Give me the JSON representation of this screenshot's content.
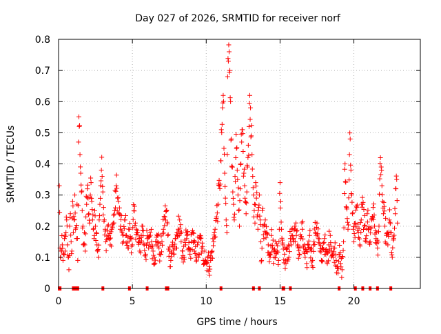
{
  "chart_data": {
    "type": "scatter",
    "title": "Day 027 of 2026, SRMTID for receiver norf",
    "xlabel": "GPS time / hours",
    "ylabel": "SRMTID / TECUs",
    "xlim": [
      0,
      24.5
    ],
    "ylim": [
      0,
      0.8
    ],
    "xticks": [
      0,
      5,
      10,
      15,
      20
    ],
    "yticks": [
      0,
      0.1,
      0.2,
      0.3,
      0.4,
      0.5,
      0.6,
      0.7,
      0.8
    ],
    "grid": true,
    "marker": "+",
    "color": "#ff0000",
    "series": [
      {
        "name": "SRMTID",
        "points": [
          [
            0.05,
            0.33
          ],
          [
            0.1,
            0.13
          ],
          [
            0.15,
            0.1
          ],
          [
            0.2,
            0.12
          ],
          [
            0.25,
            0.14
          ],
          [
            0.3,
            0.09
          ],
          [
            0.35,
            0.11
          ],
          [
            0.4,
            0.16
          ],
          [
            0.45,
            0.12
          ],
          [
            0.5,
            0.18
          ],
          [
            0.55,
            0.22
          ],
          [
            0.6,
            0.14
          ],
          [
            0.65,
            0.1
          ],
          [
            0.7,
            0.06
          ],
          [
            0.75,
            0.2
          ],
          [
            0.8,
            0.24
          ],
          [
            0.85,
            0.15
          ],
          [
            0.9,
            0.12
          ],
          [
            0.95,
            0.28
          ],
          [
            1.0,
            0.18
          ],
          [
            1.05,
            0.22
          ],
          [
            1.1,
            0.3
          ],
          [
            1.15,
            0.19
          ],
          [
            1.2,
            0.16
          ],
          [
            1.25,
            0.27
          ],
          [
            1.3,
            0.09
          ],
          [
            1.35,
            0.47
          ],
          [
            1.4,
            0.52
          ],
          [
            1.45,
            0.43
          ],
          [
            1.5,
            0.37
          ],
          [
            1.55,
            0.31
          ],
          [
            1.6,
            0.25
          ],
          [
            1.65,
            0.2
          ],
          [
            1.7,
            0.14
          ],
          [
            1.75,
            0.18
          ],
          [
            1.8,
            0.12
          ],
          [
            1.85,
            0.23
          ],
          [
            1.9,
            0.27
          ],
          [
            1.95,
            0.32
          ],
          [
            2.0,
            0.29
          ],
          [
            2.05,
            0.24
          ],
          [
            2.1,
            0.21
          ],
          [
            2.15,
            0.3
          ],
          [
            2.2,
            0.34
          ],
          [
            2.25,
            0.28
          ],
          [
            2.3,
            0.22
          ],
          [
            2.35,
            0.19
          ],
          [
            2.4,
            0.16
          ],
          [
            2.45,
            0.25
          ],
          [
            2.5,
            0.2
          ],
          [
            2.55,
            0.18
          ],
          [
            2.6,
            0.14
          ],
          [
            2.65,
            0.12
          ],
          [
            2.7,
            0.1
          ],
          [
            2.75,
            0.22
          ],
          [
            2.8,
            0.27
          ],
          [
            2.85,
            0.33
          ],
          [
            2.9,
            0.38
          ],
          [
            2.95,
            0.36
          ],
          [
            3.0,
            0.31
          ],
          [
            3.05,
            0.26
          ],
          [
            3.1,
            0.22
          ],
          [
            3.15,
            0.19
          ],
          [
            3.2,
            0.15
          ],
          [
            3.3,
            0.2
          ],
          [
            3.4,
            0.17
          ],
          [
            3.5,
            0.14
          ],
          [
            3.6,
            0.19
          ],
          [
            3.7,
            0.21
          ],
          [
            3.8,
            0.25
          ],
          [
            3.9,
            0.33
          ],
          [
            4.0,
            0.29
          ],
          [
            4.1,
            0.24
          ],
          [
            4.2,
            0.2
          ],
          [
            4.3,
            0.18
          ],
          [
            4.4,
            0.15
          ],
          [
            4.5,
            0.22
          ],
          [
            4.6,
            0.17
          ],
          [
            4.7,
            0.13
          ],
          [
            4.8,
            0.19
          ],
          [
            4.9,
            0.16
          ],
          [
            5.0,
            0.14
          ],
          [
            5.1,
            0.25
          ],
          [
            5.2,
            0.21
          ],
          [
            5.3,
            0.18
          ],
          [
            5.4,
            0.15
          ],
          [
            5.5,
            0.12
          ],
          [
            5.6,
            0.17
          ],
          [
            5.7,
            0.2
          ],
          [
            5.8,
            0.14
          ],
          [
            5.9,
            0.11
          ],
          [
            6.0,
            0.16
          ],
          [
            6.1,
            0.13
          ],
          [
            6.2,
            0.18
          ],
          [
            6.3,
            0.15
          ],
          [
            6.4,
            0.12
          ],
          [
            6.5,
            0.1
          ],
          [
            6.6,
            0.14
          ],
          [
            6.7,
            0.17
          ],
          [
            6.8,
            0.13
          ],
          [
            6.9,
            0.11
          ],
          [
            7.0,
            0.15
          ],
          [
            7.1,
            0.19
          ],
          [
            7.2,
            0.23
          ],
          [
            7.3,
            0.25
          ],
          [
            7.4,
            0.17
          ],
          [
            7.5,
            0.12
          ],
          [
            7.6,
            0.09
          ],
          [
            7.7,
            0.14
          ],
          [
            7.8,
            0.11
          ],
          [
            7.9,
            0.16
          ],
          [
            8.0,
            0.13
          ],
          [
            8.1,
            0.19
          ],
          [
            8.2,
            0.22
          ],
          [
            8.3,
            0.15
          ],
          [
            8.4,
            0.12
          ],
          [
            8.5,
            0.1
          ],
          [
            8.6,
            0.14
          ],
          [
            8.7,
            0.17
          ],
          [
            8.8,
            0.13
          ],
          [
            8.9,
            0.11
          ],
          [
            9.0,
            0.15
          ],
          [
            9.1,
            0.18
          ],
          [
            9.2,
            0.12
          ],
          [
            9.3,
            0.1
          ],
          [
            9.4,
            0.14
          ],
          [
            9.5,
            0.11
          ],
          [
            9.6,
            0.16
          ],
          [
            9.7,
            0.13
          ],
          [
            9.8,
            0.09
          ],
          [
            9.9,
            0.12
          ],
          [
            10.0,
            0.08
          ],
          [
            10.1,
            0.1
          ],
          [
            10.2,
            0.07
          ],
          [
            10.3,
            0.09
          ],
          [
            10.4,
            0.12
          ],
          [
            10.5,
            0.15
          ],
          [
            10.6,
            0.19
          ],
          [
            10.7,
            0.23
          ],
          [
            10.8,
            0.27
          ],
          [
            10.9,
            0.33
          ],
          [
            11.0,
            0.41
          ],
          [
            11.05,
            0.5
          ],
          [
            11.1,
            0.58
          ],
          [
            11.15,
            0.62
          ],
          [
            11.2,
            0.45
          ],
          [
            11.25,
            0.37
          ],
          [
            11.3,
            0.29
          ],
          [
            11.35,
            0.22
          ],
          [
            11.4,
            0.18
          ],
          [
            11.45,
            0.68
          ],
          [
            11.5,
            0.73
          ],
          [
            11.55,
            0.76
          ],
          [
            11.6,
            0.7
          ],
          [
            11.65,
            0.6
          ],
          [
            11.7,
            0.48
          ],
          [
            11.75,
            0.39
          ],
          [
            11.8,
            0.31
          ],
          [
            11.85,
            0.27
          ],
          [
            11.9,
            0.22
          ],
          [
            11.95,
            0.36
          ],
          [
            12.0,
            0.42
          ],
          [
            12.05,
            0.45
          ],
          [
            12.1,
            0.38
          ],
          [
            12.15,
            0.3
          ],
          [
            12.2,
            0.25
          ],
          [
            12.25,
            0.2
          ],
          [
            12.3,
            0.32
          ],
          [
            12.35,
            0.4
          ],
          [
            12.4,
            0.47
          ],
          [
            12.45,
            0.51
          ],
          [
            12.5,
            0.44
          ],
          [
            12.55,
            0.37
          ],
          [
            12.6,
            0.33
          ],
          [
            12.65,
            0.28
          ],
          [
            12.7,
            0.24
          ],
          [
            12.75,
            0.31
          ],
          [
            12.8,
            0.39
          ],
          [
            12.85,
            0.46
          ],
          [
            12.9,
            0.52
          ],
          [
            12.95,
            0.62
          ],
          [
            13.0,
            0.58
          ],
          [
            13.05,
            0.49
          ],
          [
            13.1,
            0.43
          ],
          [
            13.15,
            0.36
          ],
          [
            13.2,
            0.3
          ],
          [
            13.25,
            0.25
          ],
          [
            13.3,
            0.21
          ],
          [
            13.35,
            0.34
          ],
          [
            13.4,
            0.29
          ],
          [
            13.45,
            0.23
          ],
          [
            13.5,
            0.19
          ],
          [
            13.55,
            0.26
          ],
          [
            13.6,
            0.3
          ],
          [
            13.65,
            0.22
          ],
          [
            13.7,
            0.15
          ],
          [
            13.75,
            0.09
          ],
          [
            13.8,
            0.25
          ],
          [
            13.85,
            0.2
          ],
          [
            13.9,
            0.16
          ],
          [
            14.0,
            0.22
          ],
          [
            14.1,
            0.18
          ],
          [
            14.2,
            0.14
          ],
          [
            14.3,
            0.11
          ],
          [
            14.4,
            0.17
          ],
          [
            14.5,
            0.13
          ],
          [
            14.6,
            0.1
          ],
          [
            14.7,
            0.15
          ],
          [
            14.8,
            0.12
          ],
          [
            14.9,
            0.09
          ],
          [
            15.0,
            0.34
          ],
          [
            15.05,
            0.28
          ],
          [
            15.1,
            0.19
          ],
          [
            15.2,
            0.14
          ],
          [
            15.3,
            0.11
          ],
          [
            15.4,
            0.08
          ],
          [
            15.5,
            0.13
          ],
          [
            15.6,
            0.1
          ],
          [
            15.7,
            0.16
          ],
          [
            15.8,
            0.19
          ],
          [
            15.9,
            0.15
          ],
          [
            16.0,
            0.2
          ],
          [
            16.1,
            0.17
          ],
          [
            16.2,
            0.14
          ],
          [
            16.3,
            0.11
          ],
          [
            16.4,
            0.16
          ],
          [
            16.5,
            0.19
          ],
          [
            16.6,
            0.13
          ],
          [
            16.7,
            0.1
          ],
          [
            16.8,
            0.08
          ],
          [
            16.9,
            0.14
          ],
          [
            17.0,
            0.17
          ],
          [
            17.1,
            0.12
          ],
          [
            17.2,
            0.09
          ],
          [
            17.3,
            0.15
          ],
          [
            17.4,
            0.18
          ],
          [
            17.5,
            0.21
          ],
          [
            17.6,
            0.16
          ],
          [
            17.7,
            0.12
          ],
          [
            17.8,
            0.09
          ],
          [
            17.9,
            0.13
          ],
          [
            18.0,
            0.16
          ],
          [
            18.1,
            0.11
          ],
          [
            18.2,
            0.08
          ],
          [
            18.3,
            0.14
          ],
          [
            18.4,
            0.17
          ],
          [
            18.5,
            0.12
          ],
          [
            18.6,
            0.1
          ],
          [
            18.7,
            0.13
          ],
          [
            18.8,
            0.09
          ],
          [
            18.9,
            0.07
          ],
          [
            19.0,
            0.11
          ],
          [
            19.1,
            0.08
          ],
          [
            19.2,
            0.06
          ],
          [
            19.3,
            0.15
          ],
          [
            19.4,
            0.4
          ],
          [
            19.5,
            0.26
          ],
          [
            19.6,
            0.19
          ],
          [
            19.7,
            0.43
          ],
          [
            19.75,
            0.48
          ],
          [
            19.8,
            0.38
          ],
          [
            19.85,
            0.3
          ],
          [
            19.9,
            0.24
          ],
          [
            19.95,
            0.19
          ],
          [
            20.0,
            0.15
          ],
          [
            20.1,
            0.21
          ],
          [
            20.2,
            0.26
          ],
          [
            20.3,
            0.18
          ],
          [
            20.4,
            0.14
          ],
          [
            20.5,
            0.22
          ],
          [
            20.6,
            0.27
          ],
          [
            20.7,
            0.2
          ],
          [
            20.8,
            0.16
          ],
          [
            20.9,
            0.24
          ],
          [
            21.0,
            0.19
          ],
          [
            21.1,
            0.15
          ],
          [
            21.2,
            0.22
          ],
          [
            21.3,
            0.26
          ],
          [
            21.4,
            0.2
          ],
          [
            21.5,
            0.16
          ],
          [
            21.6,
            0.13
          ],
          [
            21.7,
            0.2
          ],
          [
            21.8,
            0.42
          ],
          [
            21.85,
            0.39
          ],
          [
            21.9,
            0.33
          ],
          [
            21.95,
            0.28
          ],
          [
            22.0,
            0.24
          ],
          [
            22.1,
            0.2
          ],
          [
            22.2,
            0.17
          ],
          [
            22.3,
            0.14
          ],
          [
            22.4,
            0.22
          ],
          [
            22.5,
            0.18
          ],
          [
            22.6,
            0.1
          ],
          [
            22.7,
            0.16
          ],
          [
            22.8,
            0.24
          ],
          [
            22.85,
            0.32
          ],
          [
            22.9,
            0.35
          ],
          [
            22.95,
            0.21
          ]
        ]
      }
    ],
    "zero_markers": [
      0.05,
      0.1,
      1.0,
      1.15,
      1.3,
      3.0,
      4.8,
      6.0,
      7.3,
      7.4,
      11.0,
      13.2,
      13.6,
      15.2,
      15.25,
      15.7,
      19.0,
      20.1,
      20.6,
      21.1,
      21.6,
      22.5
    ]
  }
}
